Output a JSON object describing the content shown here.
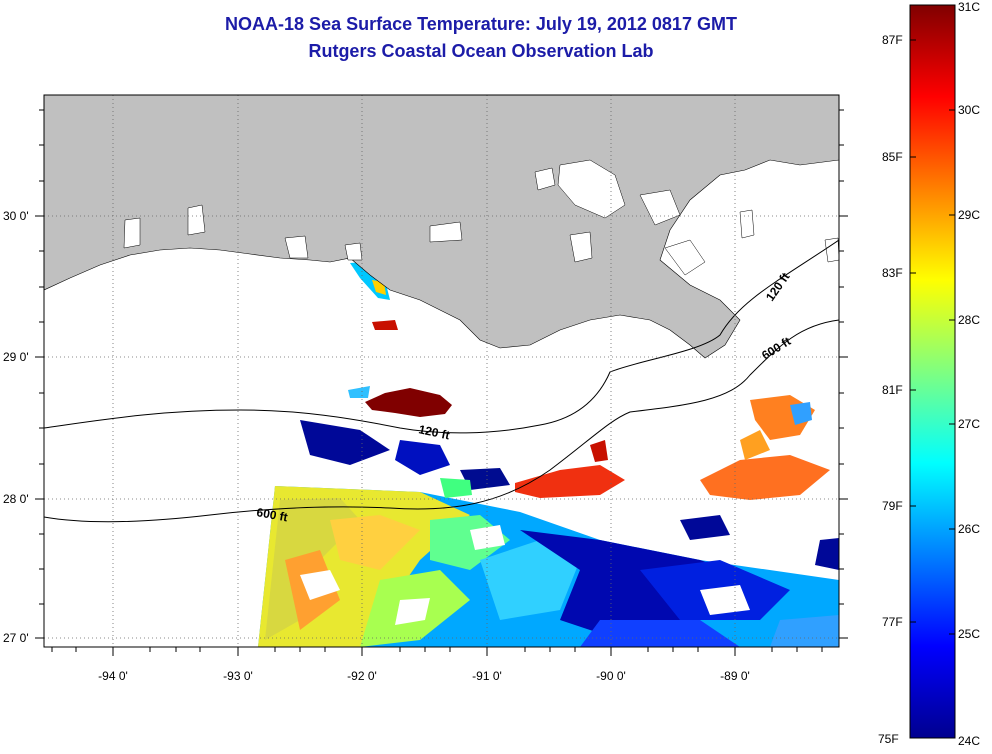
{
  "header": {
    "title": "NOAA-18 Sea Surface Temperature:  July 19, 2012 0817 GMT",
    "subtitle": "Rutgers Coastal Ocean Observation Lab"
  },
  "map": {
    "lon_ticks": [
      "-94 0'",
      "-93 0'",
      "-92 0'",
      "-91 0'",
      "-90 0'",
      "-89 0'"
    ],
    "lat_ticks": [
      "30 0'",
      "29 0'",
      "28 0'",
      "27 0'"
    ],
    "isobaths": [
      {
        "label": "120 ft"
      },
      {
        "label": "600 ft"
      },
      {
        "label": "120 ft"
      },
      {
        "label": "600 ft"
      }
    ],
    "colors": {
      "land": "#c0c0c0",
      "no_data": "#ffffff"
    }
  },
  "colorbar": {
    "fahrenheit_ticks": [
      "87F",
      "85F",
      "83F",
      "81F",
      "79F",
      "77F",
      "75F"
    ],
    "celsius_ticks": [
      "31C",
      "30C",
      "29C",
      "28C",
      "27C",
      "26C",
      "25C",
      "24C"
    ],
    "range_c": [
      24,
      31
    ],
    "colormap": "jet"
  }
}
